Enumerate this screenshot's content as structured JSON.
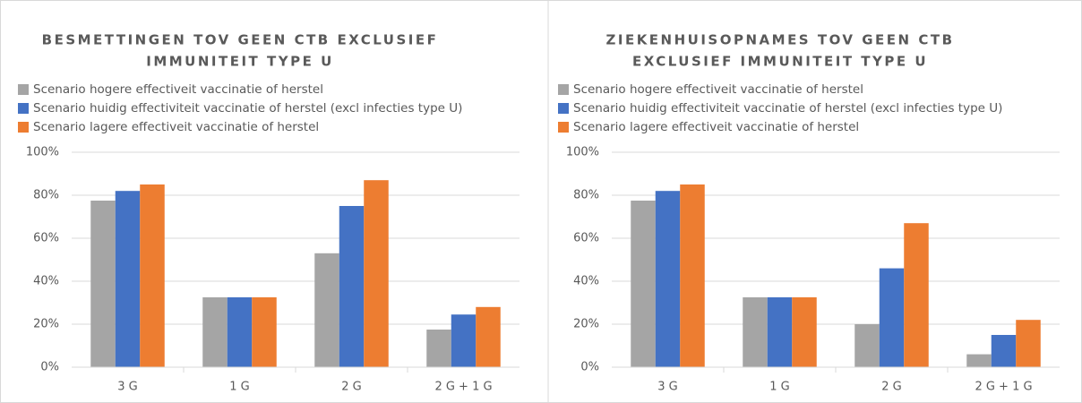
{
  "chart_data": [
    {
      "type": "bar",
      "title": [
        "BESMETTINGEN TOV GEEN CTB EXCLUSIEF",
        "IMMUNITEIT TYPE U"
      ],
      "categories": [
        "3 G",
        "1 G",
        "2 G",
        "2 G + 1 G"
      ],
      "series": [
        {
          "name": "Scenario hogere effectiveit vaccinatie of herstel",
          "color": "#a5a5a5",
          "values": [
            77.5,
            32.5,
            53,
            17.5
          ]
        },
        {
          "name": "Scenario huidig effectiviteit vaccinatie of herstel (excl infecties type U)",
          "color": "#4472c4",
          "values": [
            82,
            32.5,
            75,
            24.5
          ]
        },
        {
          "name": "Scenario lagere effectiveit vaccinatie of herstel",
          "color": "#ed7d31",
          "values": [
            85,
            32.5,
            87,
            28
          ]
        }
      ],
      "ylim": [
        0,
        100
      ],
      "yticks": [
        {
          "value": 0,
          "label": "0%"
        },
        {
          "value": 20,
          "label": "20%"
        },
        {
          "value": 40,
          "label": "40%"
        },
        {
          "value": 60,
          "label": "60%"
        },
        {
          "value": 80,
          "label": "80%"
        },
        {
          "value": 100,
          "label": "100%"
        }
      ],
      "grid": true
    },
    {
      "type": "bar",
      "title": [
        "ZIEKENHUISOPNAMES TOV GEEN CTB",
        "EXCLUSIEF IMMUNITEIT TYPE U"
      ],
      "categories": [
        "3 G",
        "1 G",
        "2 G",
        "2 G + 1 G"
      ],
      "series": [
        {
          "name": "Scenario hogere effectiveit vaccinatie of herstel",
          "color": "#a5a5a5",
          "values": [
            77.5,
            32.5,
            20,
            6
          ]
        },
        {
          "name": "Scenario huidig effectiviteit vaccinatie of herstel (excl infecties type U)",
          "color": "#4472c4",
          "values": [
            82,
            32.5,
            46,
            15
          ]
        },
        {
          "name": "Scenario lagere effectiveit vaccinatie of herstel",
          "color": "#ed7d31",
          "values": [
            85,
            32.5,
            67,
            22
          ]
        }
      ],
      "ylim": [
        0,
        100
      ],
      "yticks": [
        {
          "value": 0,
          "label": "0%"
        },
        {
          "value": 20,
          "label": "20%"
        },
        {
          "value": 40,
          "label": "40%"
        },
        {
          "value": 60,
          "label": "60%"
        },
        {
          "value": 80,
          "label": "80%"
        },
        {
          "value": 100,
          "label": "100%"
        }
      ],
      "grid": true
    }
  ]
}
